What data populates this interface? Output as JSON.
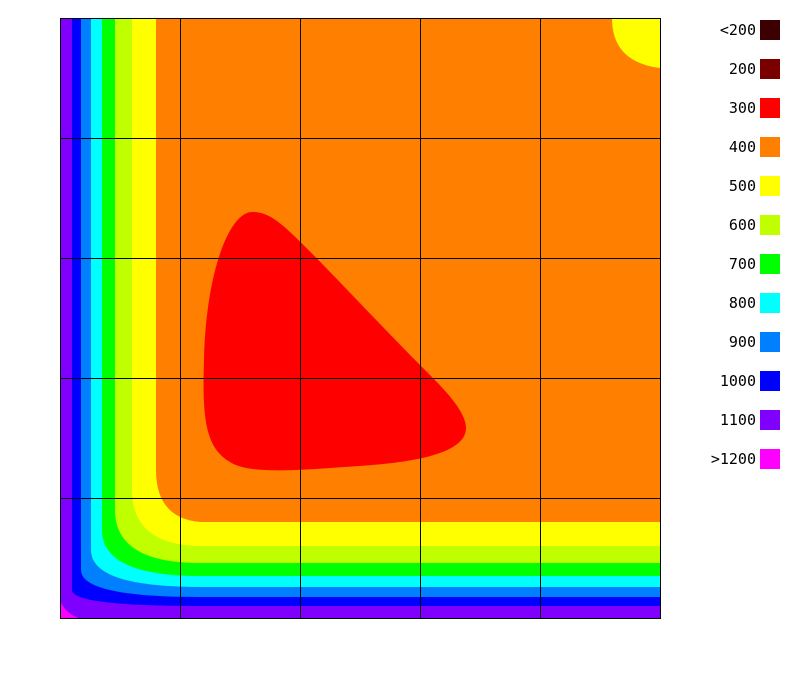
{
  "chart_data": {
    "type": "heatmap",
    "title": "",
    "xlabel": "",
    "ylabel": "",
    "grid": true,
    "grid_divisions": 5,
    "legend_position": "right",
    "levels": [
      {
        "label": "<200",
        "color": "#3d0000"
      },
      {
        "label": "200",
        "color": "#7a0000"
      },
      {
        "label": "300",
        "color": "#ff0000"
      },
      {
        "label": "400",
        "color": "#ff8000"
      },
      {
        "label": "500",
        "color": "#ffff00"
      },
      {
        "label": "600",
        "color": "#bfff00"
      },
      {
        "label": "700",
        "color": "#00ff00"
      },
      {
        "label": "800",
        "color": "#00ffff"
      },
      {
        "label": "900",
        "color": "#0080ff"
      },
      {
        "label": "1000",
        "color": "#0000ff"
      },
      {
        "label": "1100",
        "color": "#8000ff"
      },
      {
        ">1200": "",
        "label": ">1200",
        "color": "#ff00ff"
      }
    ]
  }
}
